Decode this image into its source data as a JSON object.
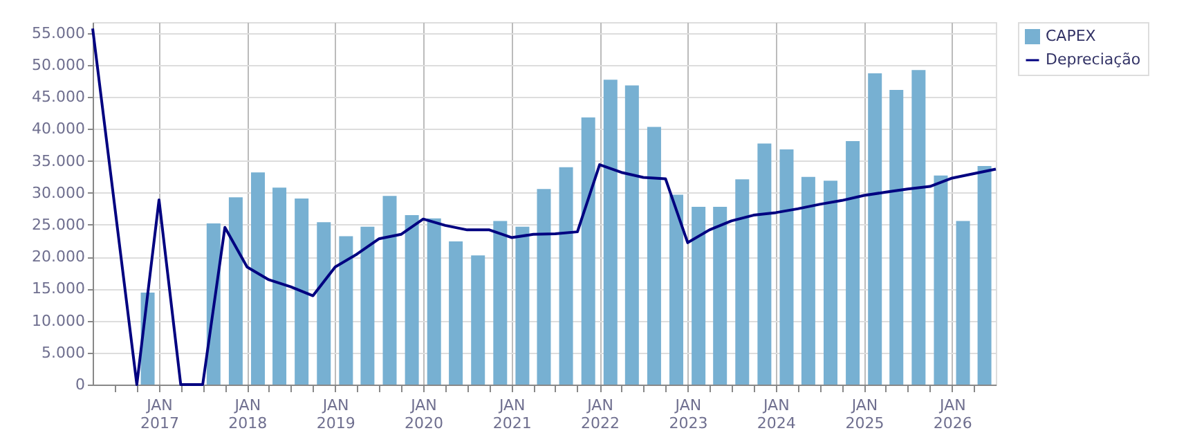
{
  "chart_data": {
    "type": "bar",
    "legend": "top right",
    "grid": true,
    "xlim": [
      "2016-04-01",
      "2026-07-01"
    ],
    "xticks": [
      {
        "value": "2016-07-01",
        "label": null
      },
      {
        "value": "2016-10-01",
        "label": null
      },
      {
        "value": "2017-01-01",
        "label": "JAN 2017"
      },
      {
        "value": "2017-04-01",
        "label": null
      },
      {
        "value": "2017-07-01",
        "label": null
      },
      {
        "value": "2017-10-01",
        "label": null
      },
      {
        "value": "2018-01-01",
        "label": "JAN 2018"
      },
      {
        "value": "2018-04-01",
        "label": null
      },
      {
        "value": "2018-07-01",
        "label": null
      },
      {
        "value": "2018-10-01",
        "label": null
      },
      {
        "value": "2019-01-01",
        "label": "JAN 2019"
      },
      {
        "value": "2019-04-01",
        "label": null
      },
      {
        "value": "2019-07-01",
        "label": null
      },
      {
        "value": "2019-10-01",
        "label": null
      },
      {
        "value": "2020-01-01",
        "label": "JAN 2020"
      },
      {
        "value": "2020-04-01",
        "label": null
      },
      {
        "value": "2020-07-01",
        "label": null
      },
      {
        "value": "2020-10-01",
        "label": null
      },
      {
        "value": "2021-01-01",
        "label": "JAN 2021"
      },
      {
        "value": "2021-04-01",
        "label": null
      },
      {
        "value": "2021-07-01",
        "label": null
      },
      {
        "value": "2021-10-01",
        "label": null
      },
      {
        "value": "2022-01-01",
        "label": "JAN 2022"
      },
      {
        "value": "2022-04-01",
        "label": null
      },
      {
        "value": "2022-07-01",
        "label": null
      },
      {
        "value": "2022-10-01",
        "label": null
      },
      {
        "value": "2023-01-01",
        "label": "JAN 2023"
      },
      {
        "value": "2023-04-01",
        "label": null
      },
      {
        "value": "2023-07-01",
        "label": null
      },
      {
        "value": "2023-10-01",
        "label": null
      },
      {
        "value": "2024-01-01",
        "label": "JAN 2024"
      },
      {
        "value": "2024-04-01",
        "label": null
      },
      {
        "value": "2024-07-01",
        "label": null
      },
      {
        "value": "2024-10-01",
        "label": null
      },
      {
        "value": "2025-01-01",
        "label": "JAN 2025"
      },
      {
        "value": "2025-04-01",
        "label": null
      },
      {
        "value": "2025-07-01",
        "label": null
      },
      {
        "value": "2025-10-01",
        "label": null
      },
      {
        "value": "2026-01-01",
        "label": "JAN 2026"
      },
      {
        "value": "2026-04-01",
        "label": null
      }
    ],
    "ylim": [
      0,
      56700
    ],
    "yticks": [
      {
        "value": 0,
        "label": "0"
      },
      {
        "value": 5000,
        "label": "5.000"
      },
      {
        "value": 10000,
        "label": "10.000"
      },
      {
        "value": 15000,
        "label": "15.000"
      },
      {
        "value": 20000,
        "label": "20.000"
      },
      {
        "value": 25000,
        "label": "25.000"
      },
      {
        "value": 30000,
        "label": "30.000"
      },
      {
        "value": 35000,
        "label": "35.000"
      },
      {
        "value": 40000,
        "label": "40.000"
      },
      {
        "value": 45000,
        "label": "45.000"
      },
      {
        "value": 50000,
        "label": "50.000"
      },
      {
        "value": 55000,
        "label": "55.000"
      }
    ],
    "series": [
      {
        "name": "CAPEX",
        "color": "#77b0d2",
        "x": [
          "2016-11-15",
          "2017-08-15",
          "2017-11-15",
          "2018-02-15",
          "2018-05-15",
          "2018-08-15",
          "2018-11-15",
          "2019-02-15",
          "2019-05-15",
          "2019-08-15",
          "2019-11-15",
          "2020-02-15",
          "2020-05-15",
          "2020-08-15",
          "2020-11-15",
          "2021-02-15",
          "2021-05-15",
          "2021-08-15",
          "2021-11-15",
          "2022-02-15",
          "2022-05-15",
          "2022-08-15",
          "2022-11-15",
          "2023-02-15",
          "2023-05-15",
          "2023-08-15",
          "2023-11-15",
          "2024-02-15",
          "2024-05-15",
          "2024-08-15",
          "2024-11-15",
          "2025-02-15",
          "2025-05-15",
          "2025-08-15",
          "2025-11-15",
          "2026-02-15",
          "2026-05-15"
        ],
        "values": [
          14400,
          25200,
          29300,
          33200,
          30800,
          29100,
          25400,
          23200,
          24700,
          29500,
          26500,
          26000,
          22400,
          20200,
          25600,
          24700,
          30600,
          34000,
          41800,
          47700,
          46800,
          40300,
          29700,
          27800,
          27800,
          32100,
          37700,
          36800,
          32500,
          31900,
          38100,
          48700,
          46100,
          49200,
          32700,
          25600,
          34200
        ]
      },
      {
        "name": "Depreciação",
        "type": "line",
        "color": "#000080",
        "x": [
          "2016-04-01",
          "2016-10-01",
          "2017-01-01",
          "2017-04-01",
          "2017-07-01",
          "2017-10-01",
          "2018-01-01",
          "2018-04-01",
          "2018-07-01",
          "2018-10-01",
          "2019-01-01",
          "2019-04-01",
          "2019-07-01",
          "2019-10-01",
          "2020-01-01",
          "2020-04-01",
          "2020-07-01",
          "2020-10-01",
          "2021-01-01",
          "2021-04-01",
          "2021-07-01",
          "2021-10-01",
          "2022-01-01",
          "2022-04-01",
          "2022-07-01",
          "2022-10-01",
          "2023-01-01",
          "2023-04-01",
          "2023-07-01",
          "2023-10-01",
          "2024-01-01",
          "2024-04-01",
          "2024-07-01",
          "2024-10-01",
          "2025-01-01",
          "2025-04-01",
          "2025-07-01",
          "2025-10-01",
          "2026-01-01",
          "2026-04-01",
          "2026-07-01"
        ],
        "values": [
          55700,
          0,
          28900,
          0,
          0,
          24600,
          18400,
          16400,
          15300,
          13900,
          18400,
          20400,
          22800,
          23500,
          25900,
          24900,
          24200,
          24200,
          23000,
          23500,
          23600,
          23900,
          34400,
          33200,
          32400,
          32200,
          22200,
          24200,
          25600,
          26500,
          26900,
          27500,
          28200,
          28800,
          29600,
          30100,
          30600,
          31000,
          32300,
          33000,
          33700
        ]
      }
    ]
  }
}
